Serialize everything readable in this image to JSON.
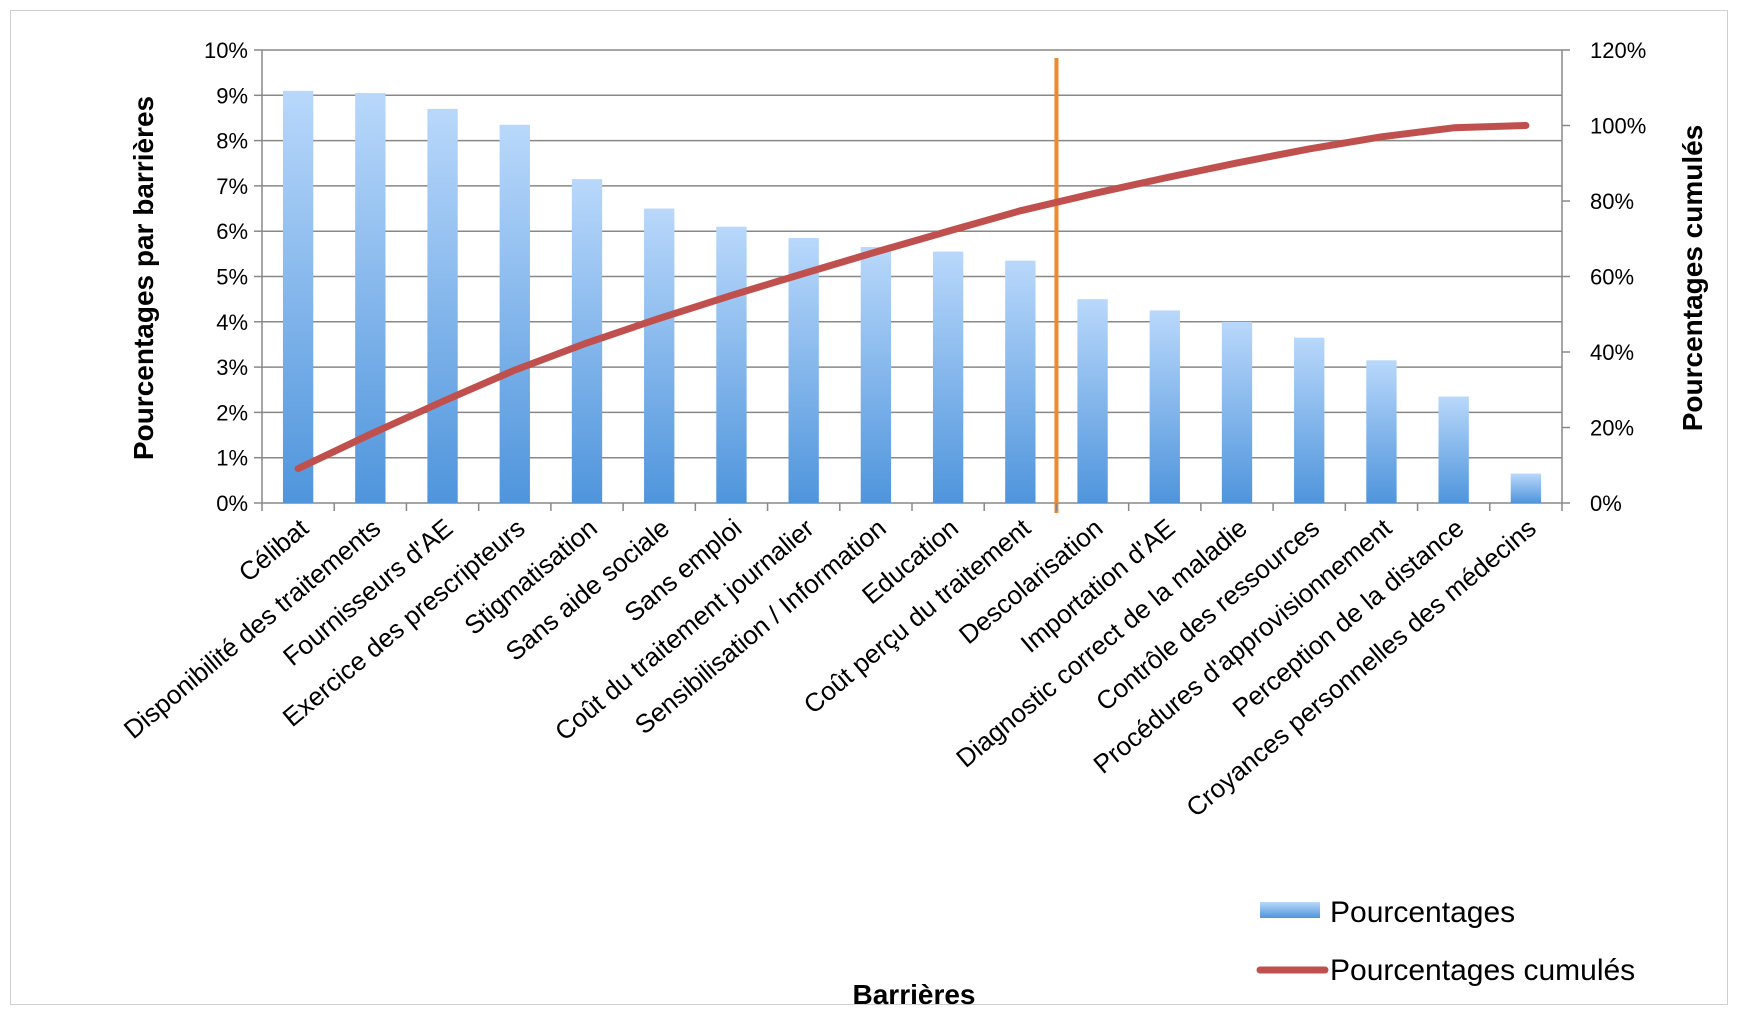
{
  "chart_data": {
    "type": "bar",
    "categories": [
      "Célibat",
      "Disponibilité des traitements",
      "Fournisseurs d'AE",
      "Exercice des prescripteurs",
      "Stigmatisation",
      "Sans aide sociale",
      "Sans emploi",
      "Coût du traitement journalier",
      "Sensibilisation / Information",
      "Education",
      "Coût perçu du traitement",
      "Descolarisation",
      "Importation d'AE",
      "Diagnostic correct de la maladie",
      "Contrôle des ressources",
      "Procédures d'approvisionnement",
      "Perception de la distance",
      "Croyances personnelles des médecins"
    ],
    "series": [
      {
        "name": "Pourcentages",
        "axis": "left",
        "type": "bar",
        "color": "#5b9bd5",
        "values": [
          9.1,
          9.05,
          8.7,
          8.35,
          7.15,
          6.5,
          6.1,
          5.85,
          5.65,
          5.55,
          5.35,
          4.5,
          4.25,
          4.0,
          3.65,
          3.15,
          2.35,
          0.65
        ]
      },
      {
        "name": "Pourcentages cumulés",
        "axis": "right",
        "type": "line",
        "color": "#c0504d",
        "values": [
          9.1,
          18.2,
          26.9,
          35.2,
          42.4,
          48.9,
          55.0,
          60.8,
          66.5,
          72.0,
          77.4,
          81.9,
          86.1,
          90.1,
          93.8,
          97.0,
          99.4,
          100.0
        ]
      }
    ],
    "xlabel": "Barrières",
    "ylabel": "Pourcentages par barrières",
    "y2label": "Pourcentages cumulés",
    "ylim": [
      0,
      10
    ],
    "y2lim": [
      0,
      120
    ],
    "yticks": [
      "0%",
      "1%",
      "2%",
      "3%",
      "4%",
      "5%",
      "6%",
      "7%",
      "8%",
      "9%",
      "10%"
    ],
    "y2ticks": [
      "0%",
      "20%",
      "40%",
      "60%",
      "80%",
      "100%",
      "120%"
    ],
    "grid": true,
    "legend_position": "bottom-right",
    "cutoff_line": {
      "after_category_index": 10,
      "color": "#f0892d"
    }
  }
}
